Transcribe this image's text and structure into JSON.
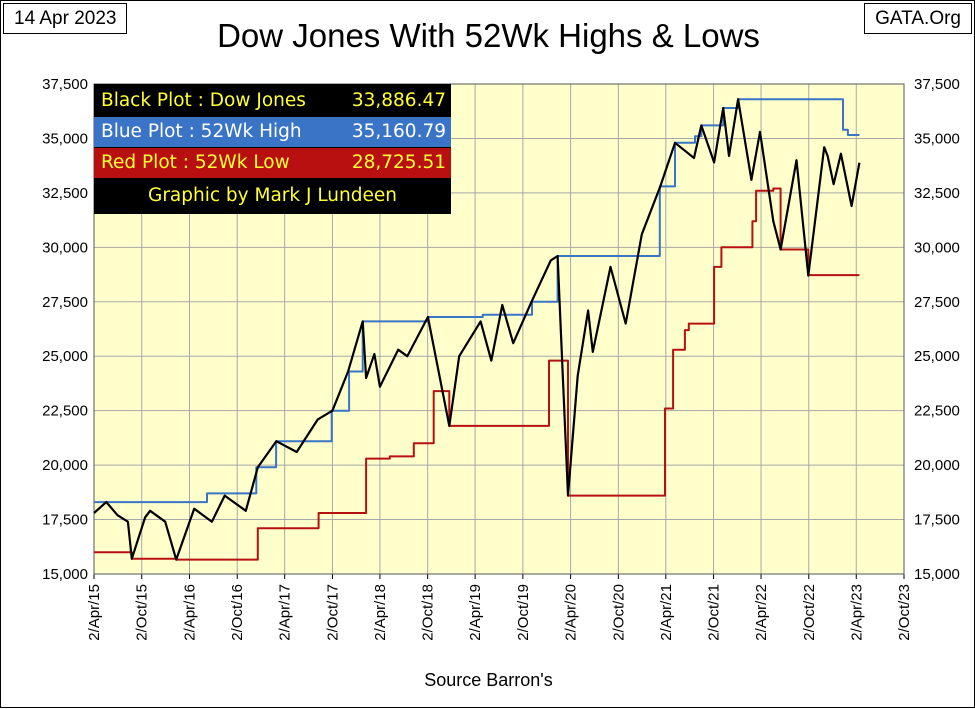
{
  "header": {
    "date": "14 Apr 2023",
    "site": "GATA.Org",
    "title": "Dow Jones With 52Wk Highs & Lows"
  },
  "legend": {
    "black": {
      "label": "Black Plot : Dow Jones",
      "value": "33,886.47"
    },
    "blue": {
      "label": "Blue Plot  : 52Wk High",
      "value": "35,160.79"
    },
    "red": {
      "label": "Red Plot   : 52Wk Low",
      "value": "28,725.51"
    },
    "credit": "Graphic by Mark J Lundeen"
  },
  "x_caption": "Source Barron's",
  "chart_data": {
    "type": "line",
    "title": "Dow Jones With 52Wk Highs & Lows",
    "xlabel": "Source Barron's",
    "ylabel": "",
    "ylim": [
      15000,
      37500
    ],
    "y_ticks": [
      "15,000",
      "17,500",
      "20,000",
      "22,500",
      "25,000",
      "27,500",
      "30,000",
      "32,500",
      "35,000",
      "37,500"
    ],
    "x_ticks": [
      "2/Apr/15",
      "2/Oct/15",
      "2/Apr/16",
      "2/Oct/16",
      "2/Apr/17",
      "2/Oct/17",
      "2/Apr/18",
      "2/Oct/18",
      "2/Apr/19",
      "2/Oct/19",
      "2/Apr/20",
      "2/Oct/20",
      "2/Apr/21",
      "2/Oct/21",
      "2/Apr/22",
      "2/Oct/22",
      "2/Apr/23",
      "2/Oct/23"
    ],
    "grid": true,
    "dual_y_axis": true,
    "background": "#ffffcc",
    "series": [
      {
        "name": "Dow Jones",
        "color": "#000000",
        "x": [
          "2015-04-02",
          "2015-05-19",
          "2015-07-01",
          "2015-08-10",
          "2015-08-25",
          "2015-10-15",
          "2015-11-03",
          "2015-12-31",
          "2016-02-11",
          "2016-04-20",
          "2016-06-27",
          "2016-08-15",
          "2016-11-04",
          "2016-12-20",
          "2017-03-01",
          "2017-05-18",
          "2017-08-07",
          "2017-10-02",
          "2017-12-01",
          "2018-01-26",
          "2018-02-08",
          "2018-03-12",
          "2018-04-02",
          "2018-06-11",
          "2018-07-16",
          "2018-10-03",
          "2018-12-24",
          "2019-01-31",
          "2019-04-23",
          "2019-06-03",
          "2019-07-15",
          "2019-08-26",
          "2019-11-04",
          "2020-01-17",
          "2020-02-12",
          "2020-03-23",
          "2020-04-29",
          "2020-06-08",
          "2020-06-26",
          "2020-09-02",
          "2020-10-30",
          "2020-12-31",
          "2021-03-12",
          "2021-05-07",
          "2021-07-19",
          "2021-08-16",
          "2021-10-04",
          "2021-11-08",
          "2021-11-30",
          "2022-01-04",
          "2022-02-24",
          "2022-03-29",
          "2022-05-19",
          "2022-06-16",
          "2022-08-16",
          "2022-09-30",
          "2022-11-30",
          "2022-12-13",
          "2023-01-05",
          "2023-02-02",
          "2023-03-15",
          "2023-04-14"
        ],
        "values": [
          17800,
          18300,
          17700,
          17400,
          15700,
          17600,
          17900,
          17400,
          15660,
          18000,
          17400,
          18600,
          17900,
          19900,
          21100,
          20600,
          22100,
          22500,
          24300,
          26600,
          24000,
          25100,
          23600,
          25300,
          25000,
          26800,
          21800,
          25000,
          26600,
          24800,
          27350,
          25600,
          27500,
          29400,
          29600,
          18600,
          24100,
          27100,
          25200,
          29100,
          26500,
          30600,
          32800,
          34800,
          34100,
          35600,
          33900,
          36400,
          34200,
          36800,
          33100,
          35300,
          31200,
          29900,
          34000,
          28700,
          34600,
          34200,
          32900,
          34300,
          31900,
          33886
        ]
      },
      {
        "name": "52Wk High",
        "color": "#3a74c6",
        "x": [
          "2015-04-02",
          "2016-04-20",
          "2016-06-08",
          "2016-12-14",
          "2017-02-28",
          "2017-09-29",
          "2017-12-05",
          "2018-01-26",
          "2018-10-03",
          "2019-01-31",
          "2019-05-01",
          "2019-11-06",
          "2020-02-12",
          "2020-11-24",
          "2021-03-10",
          "2021-05-07",
          "2021-07-23",
          "2021-08-16",
          "2021-11-08",
          "2022-01-04",
          "2023-01-04",
          "2023-02-10",
          "2023-03-01",
          "2023-04-14"
        ],
        "values": [
          18300,
          18300,
          18700,
          19900,
          21100,
          22500,
          24300,
          26600,
          26800,
          26800,
          26900,
          27500,
          29600,
          29600,
          32800,
          34800,
          35100,
          35600,
          36400,
          36800,
          36800,
          35400,
          35160,
          35160
        ]
      },
      {
        "name": "52Wk Low",
        "color": "#b81010",
        "x": [
          "2015-04-02",
          "2015-08-25",
          "2016-02-11",
          "2016-11-04",
          "2016-12-20",
          "2017-04-14",
          "2017-08-10",
          "2017-12-01",
          "2018-02-08",
          "2018-05-10",
          "2018-08-10",
          "2018-10-25",
          "2018-12-24",
          "2019-12-05",
          "2020-01-10",
          "2020-03-23",
          "2021-03-23",
          "2021-03-30",
          "2021-04-30",
          "2021-06-14",
          "2021-06-29",
          "2021-07-14",
          "2021-10-04",
          "2021-11-01",
          "2022-01-24",
          "2022-02-28",
          "2022-03-14",
          "2022-05-19",
          "2022-06-16",
          "2022-09-30",
          "2023-04-14"
        ],
        "values": [
          16000,
          15700,
          15660,
          15660,
          17100,
          17100,
          17800,
          17800,
          20300,
          20400,
          21000,
          23400,
          21800,
          21800,
          24800,
          18600,
          18600,
          22600,
          25300,
          26200,
          26500,
          26500,
          29100,
          30000,
          30000,
          31200,
          32600,
          32700,
          29900,
          28725,
          28725
        ]
      }
    ]
  }
}
